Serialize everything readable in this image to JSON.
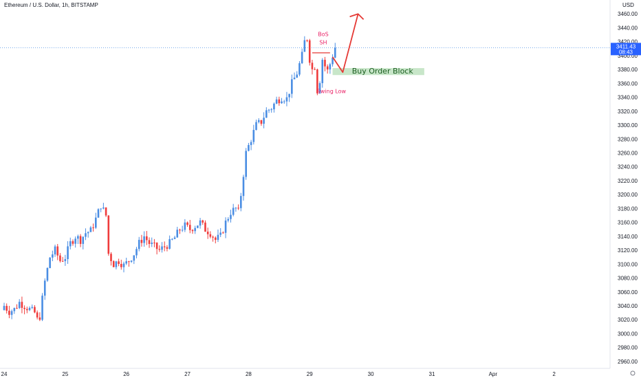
{
  "title": "Ethereum / U.S. Dollar, 1h, BITSTAMP",
  "currency": "USD",
  "price_badge": {
    "price": "3411.43",
    "countdown": "08:43"
  },
  "annotations": {
    "bos": "BoS",
    "sh": "SH",
    "swing_low": "Swing Low",
    "order_block": "Buy Order Block"
  },
  "colors": {
    "up": "#4a8de3",
    "down": "#ef3b3b",
    "arrow": "#e53935",
    "order_block": "#c8e6c9",
    "badge": "#2962ff",
    "annotation": "#e91e63"
  },
  "chart_data": {
    "type": "candlestick",
    "title": "Ethereum / U.S. Dollar, 1h, BITSTAMP",
    "ylim": [
      2950,
      3480
    ],
    "y_ticks": [
      2960,
      2980,
      3000,
      3020,
      3040,
      3060,
      3080,
      3100,
      3120,
      3140,
      3160,
      3180,
      3200,
      3220,
      3240,
      3260,
      3280,
      3300,
      3320,
      3340,
      3360,
      3380,
      3400,
      3420,
      3440,
      3460
    ],
    "y_tick_labels": [
      "2960.00",
      "2980.00",
      "3000.00",
      "3020.00",
      "3040.00",
      "3060.00",
      "3080.00",
      "3100.00",
      "3120.00",
      "3140.00",
      "3160.00",
      "3180.00",
      "3200.00",
      "3220.00",
      "3240.00",
      "3260.00",
      "3280.00",
      "3300.00",
      "3320.00",
      "3340.00",
      "3360.00",
      "3380.00",
      "3400.00",
      "3420.00",
      "3440.00",
      "3460.00"
    ],
    "x_ticks": [
      {
        "label": "24",
        "hour": 0
      },
      {
        "label": "25",
        "hour": 24
      },
      {
        "label": "26",
        "hour": 48
      },
      {
        "label": "27",
        "hour": 72
      },
      {
        "label": "28",
        "hour": 96
      },
      {
        "label": "29",
        "hour": 120
      },
      {
        "label": "30",
        "hour": 144
      },
      {
        "label": "31",
        "hour": 168
      },
      {
        "label": "Apr",
        "hour": 192
      },
      {
        "label": "2",
        "hour": 216
      }
    ],
    "hours_range": [
      0,
      235
    ],
    "last_price": 3411.43,
    "anchors": [
      [
        0,
        3040
      ],
      [
        2,
        3032
      ],
      [
        4,
        3035
      ],
      [
        6,
        3045
      ],
      [
        8,
        3040
      ],
      [
        10,
        3035
      ],
      [
        12,
        3030
      ],
      [
        13,
        3020
      ],
      [
        14,
        3025
      ],
      [
        16,
        3075
      ],
      [
        18,
        3110
      ],
      [
        20,
        3120
      ],
      [
        22,
        3105
      ],
      [
        24,
        3110
      ],
      [
        26,
        3130
      ],
      [
        28,
        3140
      ],
      [
        30,
        3135
      ],
      [
        32,
        3145
      ],
      [
        34,
        3148
      ],
      [
        36,
        3165
      ],
      [
        38,
        3185
      ],
      [
        40,
        3170
      ],
      [
        41,
        3115
      ],
      [
        43,
        3100
      ],
      [
        45,
        3105
      ],
      [
        47,
        3098
      ],
      [
        49,
        3105
      ],
      [
        51,
        3115
      ],
      [
        53,
        3130
      ],
      [
        55,
        3140
      ],
      [
        57,
        3130
      ],
      [
        59,
        3125
      ],
      [
        61,
        3120
      ],
      [
        63,
        3125
      ],
      [
        65,
        3130
      ],
      [
        67,
        3138
      ],
      [
        69,
        3150
      ],
      [
        71,
        3155
      ],
      [
        73,
        3150
      ],
      [
        75,
        3155
      ],
      [
        77,
        3160
      ],
      [
        79,
        3150
      ],
      [
        81,
        3145
      ],
      [
        83,
        3135
      ],
      [
        85,
        3140
      ],
      [
        87,
        3160
      ],
      [
        89,
        3175
      ],
      [
        91,
        3180
      ],
      [
        92,
        3175
      ],
      [
        93,
        3200
      ],
      [
        95,
        3260
      ],
      [
        97,
        3280
      ],
      [
        99,
        3300
      ],
      [
        101,
        3305
      ],
      [
        103,
        3320
      ],
      [
        105,
        3325
      ],
      [
        107,
        3335
      ],
      [
        109,
        3340
      ],
      [
        111,
        3338
      ],
      [
        113,
        3360
      ],
      [
        115,
        3375
      ],
      [
        117,
        3400
      ],
      [
        118,
        3420
      ],
      [
        119,
        3425
      ],
      [
        120,
        3395
      ],
      [
        121,
        3380
      ],
      [
        122,
        3385
      ],
      [
        123,
        3350
      ],
      [
        124,
        3365
      ],
      [
        125,
        3395
      ],
      [
        126,
        3385
      ],
      [
        127,
        3378
      ],
      [
        128,
        3388
      ],
      [
        129,
        3400
      ],
      [
        130,
        3411.43
      ]
    ],
    "annotations": {
      "break_of_structure": {
        "label": "BoS",
        "price": 3404,
        "hours": [
          121,
          128
        ]
      },
      "swing_high": {
        "label": "SH",
        "price": 3416
      },
      "swing_low": {
        "label": "Swing Low",
        "price": 3350
      },
      "order_block": {
        "label": "Buy Order Block",
        "hours": [
          129,
          165
        ],
        "price_low": 3372,
        "price_high": 3382
      },
      "projection_path": [
        [
          129,
          3398
        ],
        [
          133,
          3376
        ],
        [
          139,
          3460
        ],
        [
          142,
          3456
        ]
      ]
    }
  }
}
